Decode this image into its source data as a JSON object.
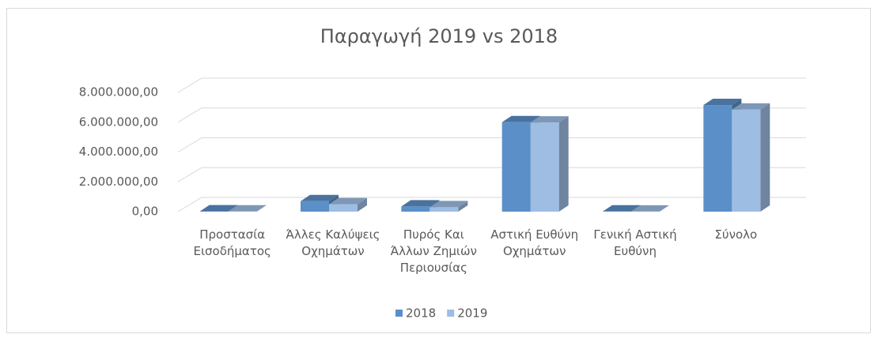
{
  "chart_data": {
    "type": "bar3d",
    "title": "Παραγωγή 2019 vs 2018",
    "categories": [
      "Προστασία Εισοδήματος",
      "Άλλες Καλύψεις Οχημάτων",
      "Πυρός Και Άλλων Ζημιών Περιουσίας",
      "Αστική Ευθύνη Οχημάτων",
      "Γενική Αστική Ευθύνη",
      "Σύνολο"
    ],
    "series": [
      {
        "name": "2018",
        "color": "#5b8fc7",
        "values": [
          20000,
          700000,
          350000,
          6000000,
          10000,
          7150000
        ]
      },
      {
        "name": "2019",
        "color": "#9dbde3",
        "values": [
          15000,
          500000,
          300000,
          5980000,
          8000,
          6850000
        ]
      }
    ],
    "ylim": [
      0,
      8000000
    ],
    "yticks": [
      {
        "value": 0,
        "label": "0,00"
      },
      {
        "value": 2000000,
        "label": "2.000.000,00"
      },
      {
        "value": 4000000,
        "label": "4.000.000,00"
      },
      {
        "value": 6000000,
        "label": "6.000.000,00"
      },
      {
        "value": 8000000,
        "label": "8.000.000,00"
      }
    ],
    "grid": true,
    "legend": "bottom"
  }
}
